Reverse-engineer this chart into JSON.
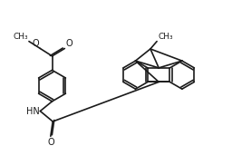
{
  "bg_color": "#ffffff",
  "line_color": "#1a1a1a",
  "lw": 1.2,
  "fs": 7.0,
  "xlim": [
    0,
    10.5
  ],
  "ylim": [
    0,
    7.5
  ]
}
